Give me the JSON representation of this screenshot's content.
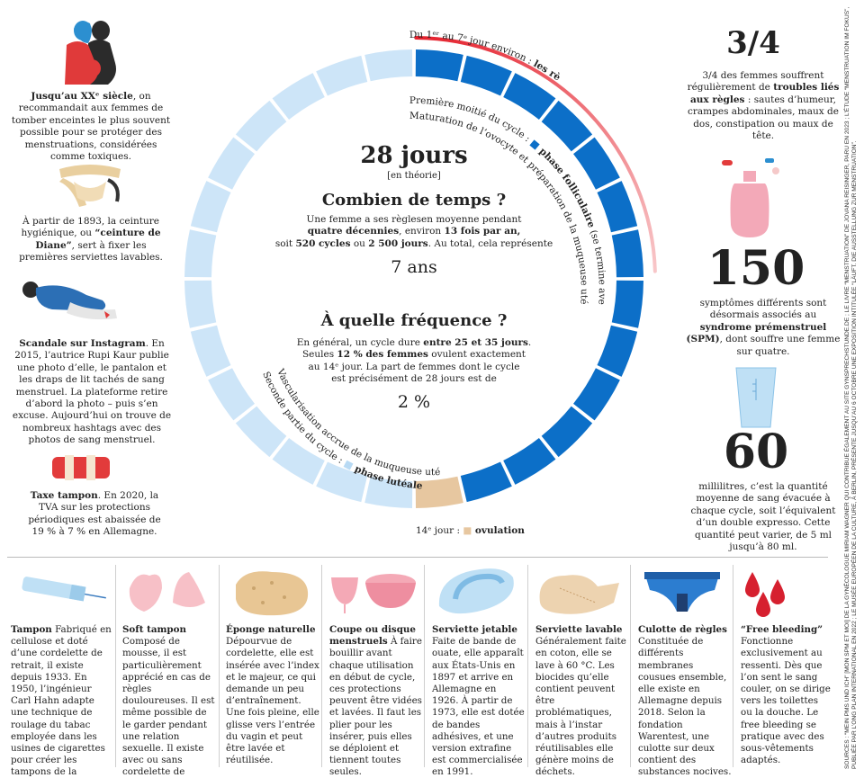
{
  "left": {
    "history1": {
      "bold": "Jusqu’au XXᵉ siècle",
      "text": ", on recommandait aux femmes de tomber enceintes le plus souvent possible pour se protéger des menstruations, considérées comme toxiques."
    },
    "history2": {
      "pre": "À partir de 1893, la ceinture hygiénique, ou ",
      "bold": "“ceinture de Diane”",
      "post": ", sert à fixer les premières serviettes lavables."
    },
    "history3": {
      "bold": "Scandale sur Instagram",
      "text": ". En 2015, l’autrice Rupi Kaur publie une photo d’elle, le pantalon et les draps de lit tachés de sang menstruel. La plateforme retire d’abord la photo – puis s’en excuse. Aujourd’hui on trouve de nombreux hashtags avec des photos de sang menstruel."
    },
    "history4": {
      "bold": "Taxe tampon",
      "text": ". En 2020, la TVA sur les protections périodiques est abaissée de 19 % à 7 % en Allemagne."
    }
  },
  "center": {
    "cycle_days": "28 jours",
    "cycle_note": "[en théorie]",
    "q1_title": "Combien de temps ?",
    "q1_text_a": "Une femme a ses règlesen moyenne pendant",
    "q1_bold_a": "quatre décennies",
    "q1_text_b": ", environ ",
    "q1_bold_b": "13 fois par an,",
    "q1_text_c": "soit ",
    "q1_bold_c": "520 cycles",
    "q1_text_d": " ou ",
    "q1_bold_d": "2 500 jours",
    "q1_text_e": ". Au total, cela représente",
    "q1_total": "7 ans",
    "q2_title": "À quelle fréquence ?",
    "q2_text_a": "En général, un cycle dure ",
    "q2_bold_a": "entre 25 et 35 jours",
    "q2_text_b": ".",
    "q2_text_c": "Seules ",
    "q2_bold_c": "12 % des femmes",
    "q2_text_d": " ovulent exactement",
    "q2_text_e": "au 14ᵉ jour. La part de femmes dont le cycle",
    "q2_text_f": "est précisément de 28 jours est de",
    "q2_total": "2 %"
  },
  "ring": {
    "period_label_a": "Du 1ᵉʳ au 7ᵉ jour environ : ",
    "period_label_b": "les règles",
    "follicular_a": "Première moitié du cycle : ",
    "follicular_b": " phase folliculaire",
    "follicular_c": " (se termine avec l’ovulation)",
    "follicular_line2": "Maturation de l’ovocyte et préparation de la muqueuse utérine",
    "luteal_a": "Seconde partie du cycle : ",
    "luteal_b": " phase lutéale",
    "luteal_line2": "Vascularisation accrue de la muqueuse utérine",
    "ovulation_a": "14ᵉ jour : ",
    "ovulation_b": " ovulation",
    "colors": {
      "dark": "#0c6fc8",
      "light": "#cde5f8",
      "ovulation": "#e7c7a0",
      "period": "#e5202c"
    }
  },
  "right": {
    "stat1_value": "3/4",
    "stat1_text_a": "3/4 des femmes souffrent régulièrement de ",
    "stat1_bold": "troubles liés aux règles",
    "stat1_text_b": " : sautes d’humeur, crampes abdominales, maux de dos, constipation ou maux de tête.",
    "stat2_value": "150",
    "stat2_text_a": "symptômes différents sont désormais associés au ",
    "stat2_bold": "syndrome prémenstruel (SPM)",
    "stat2_text_b": ", dont souffre une femme sur quatre.",
    "stat3_value": "60",
    "stat3_text": "millilitres, c’est la quantité moyenne de sang évacuée à chaque cycle, soit l’équivalent d’un double expresso. Cette quantité peut varier, de 5 ml jusqu’à 80 ml."
  },
  "products": [
    {
      "title": "Tampon",
      "text": " Fabriqué en cellulose et doté d’une cordelette de retrait, il existe depuis 1933. En 1950, l’ingénieur Carl Hahn adapte une technique de roulage du tabac employée dans les usines de cigarettes pour créer les tampons de la marque O.B."
    },
    {
      "title": "Soft tampon",
      "text": "Composé de mousse, il est particulièrement apprécié en cas de règles douloureuses. Il est même possible de le garder pendant une relation sexuelle. Il existe avec ou sans cordelette de retrait."
    },
    {
      "title": "Éponge naturelle",
      "text": "Dépourvue de cordelette, elle est insérée avec l’index et le majeur, ce qui demande un peu d’entraînement. Une fois pleine, elle glisse vers l’entrée du vagin et peut être lavée et réutilisée."
    },
    {
      "title": "Coupe ou disque menstruels",
      "text": " À faire bouillir avant chaque utilisation en début de cycle, ces protections peuvent être vidées et lavées. Il faut les plier pour les insérer, puis elles se déploient et tiennent toutes seules."
    },
    {
      "title": "Serviette jetable",
      "text": "Faite de bande de ouate, elle apparaît aux États-Unis en 1897 et arrive en Allemagne en 1926. À partir de 1973, elle est dotée de bandes adhésives, et une version extrafine est commercialisée en 1991."
    },
    {
      "title": "Serviette lavable",
      "text": "Généralement faite en coton, elle se lave à 60 °C. Les biocides qu’elle contient peuvent être problématiques, mais à l’instar d’autres produits réutilisables elle génère moins de déchets."
    },
    {
      "title": "Culotte de règles",
      "text": "Constituée de différents membranes cousues ensemble, elle existe en Allemagne depuis 2018. Selon la fondation Warentest, une culotte sur deux contient des substances nocives."
    },
    {
      "title": "“Free bleeding”",
      "text": "Fonctionne exclusivement au ressenti. Dès que l’on sent le sang couler, on se dirige vers les toilettes ou la douche. Le free bleeding se pratique avec des sous-vêtements adaptés."
    }
  ],
  "sources": "SOURCES : “MEIN PMS UND ICH” [MON SPM ET MOI] DE LA GYNÉCOLOGUE MIRIAM WAGNER QUI CONTRIBUE ÉGALEMENT AU SITE GYNSPRECHSTUNDE.DE ; LE LIVRE “MENSTRUATION” DE JOVANA REISINGER, PARU EN 2023 ; L’ÉTUDE “MENSTRUATION IM FOKUS”, PUBLIÉE PAR L’ONG PLAN INTERNATIONAL EN 2022 ; LE MUSÉE EUROPÉEN DE LA CULTURE, À BERLIN, PRÉSENTE JUSQU’AU 6 OCTOBRE UNE EXPOSITION INTITULÉE “LÄUFT. DIE AUSSTELLUNG ZUR MENSTRUATION”."
}
